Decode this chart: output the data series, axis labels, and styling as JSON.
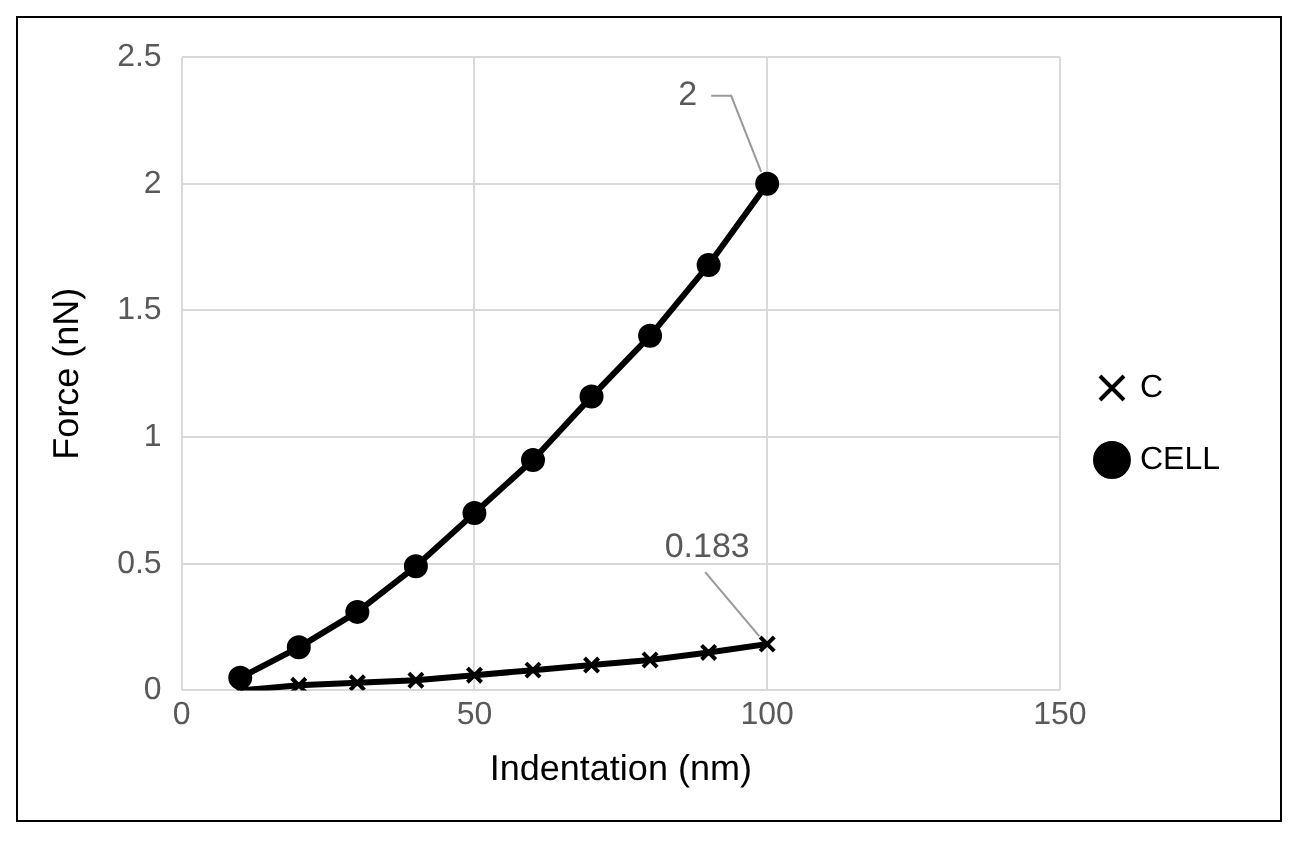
{
  "chart_data": {
    "type": "line",
    "xlabel": "Indentation (nm)",
    "ylabel": "Force (nN)",
    "xlim": [
      0,
      150
    ],
    "xticks": [
      0,
      50,
      100,
      150
    ],
    "ylim": [
      0,
      2.5
    ],
    "yticks": [
      0,
      0.5,
      1,
      1.5,
      2,
      2.5
    ],
    "grid": true,
    "legend": "right",
    "series": [
      {
        "name": "C",
        "color": "#000000",
        "marker": "cross",
        "x": [
          10,
          20,
          30,
          40,
          50,
          60,
          70,
          80,
          90,
          100
        ],
        "values": [
          0,
          0.02,
          0.03,
          0.04,
          0.06,
          0.08,
          0.1,
          0.12,
          0.15,
          0.183
        ],
        "value_labels": [
          null,
          null,
          null,
          null,
          null,
          null,
          null,
          null,
          null,
          "0.183"
        ]
      },
      {
        "name": "CELL",
        "color": "#000000",
        "marker": "circle",
        "x": [
          10,
          20,
          30,
          40,
          50,
          60,
          70,
          80,
          90,
          100
        ],
        "values": [
          0.05,
          0.17,
          0.31,
          0.49,
          0.7,
          0.91,
          1.16,
          1.4,
          1.68,
          2
        ],
        "value_labels": [
          null,
          null,
          null,
          null,
          null,
          null,
          null,
          null,
          null,
          "2"
        ]
      }
    ]
  }
}
